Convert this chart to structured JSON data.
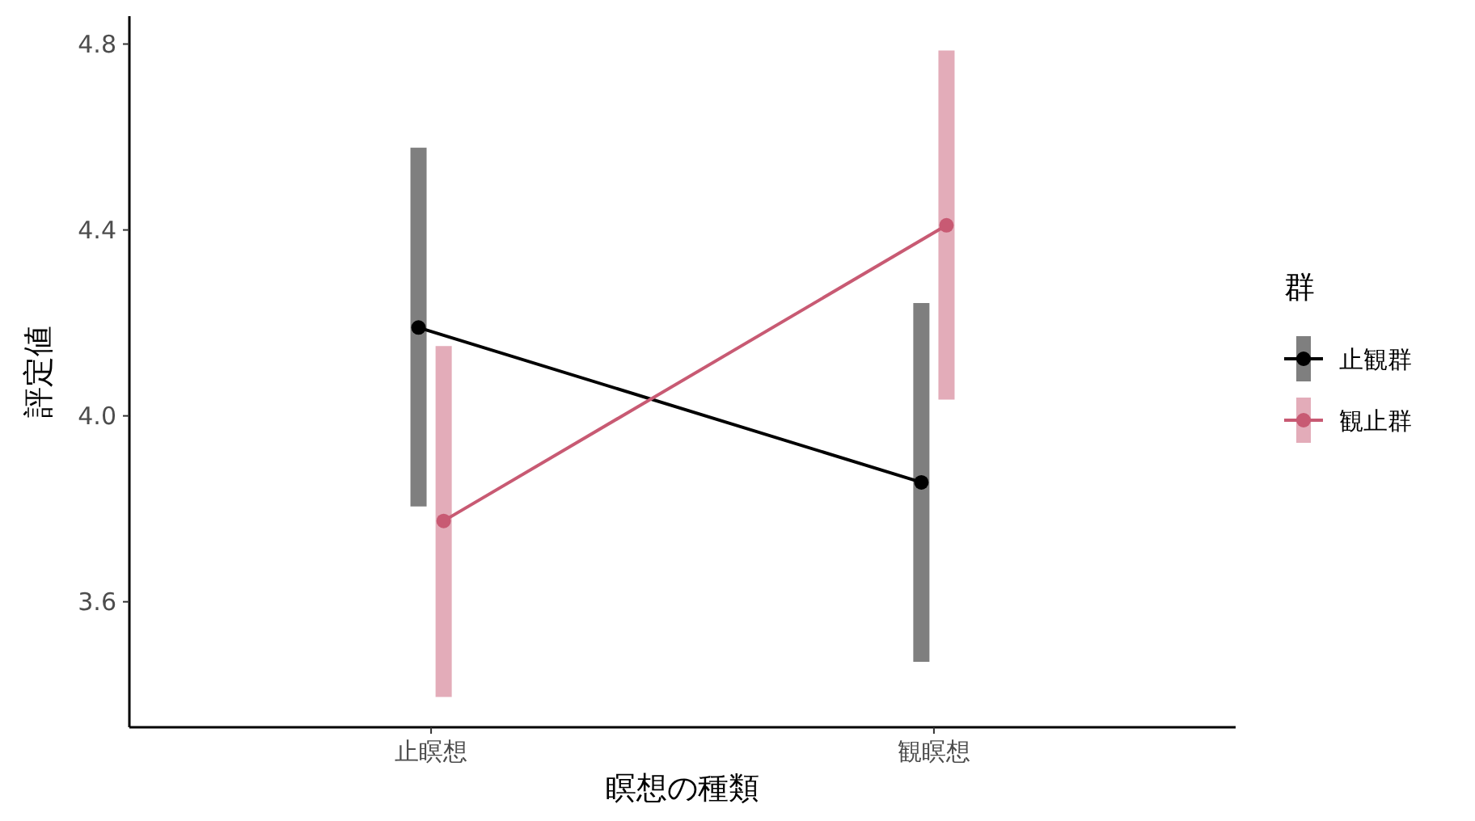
{
  "chart_data": {
    "type": "line",
    "xlabel": "瞑想の種類",
    "ylabel": "評定値",
    "legend_title": "群",
    "categories": [
      "止瞑想",
      "観瞑想"
    ],
    "series": [
      {
        "name": "止観群",
        "color": "#000000",
        "values": [
          4.19,
          3.857
        ],
        "errors": [
          [
            3.805,
            4.577
          ],
          [
            3.471,
            4.243
          ]
        ]
      },
      {
        "name": "観止群",
        "color": "#c85a73",
        "values": [
          3.774,
          4.41
        ],
        "errors": [
          [
            3.395,
            4.15
          ],
          [
            4.035,
            4.786
          ]
        ]
      }
    ],
    "ylim": [
      3.33,
      4.86
    ],
    "yticks": [
      {
        "value": 3.6,
        "label": "3.6"
      },
      {
        "value": 4.0,
        "label": "4.0"
      },
      {
        "value": 4.4,
        "label": "4.4"
      },
      {
        "value": 4.8,
        "label": "4.8"
      }
    ],
    "marker": "circle",
    "legend": "right",
    "grid": false
  }
}
